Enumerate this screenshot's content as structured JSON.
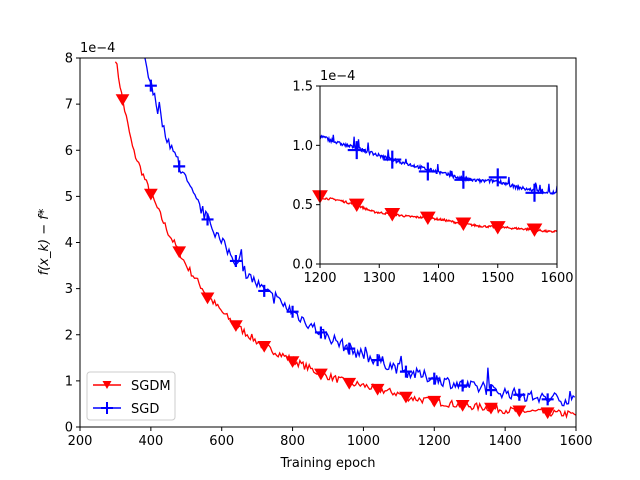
{
  "chart_data": [
    {
      "id": "main",
      "type": "line",
      "xlabel": "Training epoch",
      "ylabel": "f(x_k) − f*",
      "y_scale_label": "1e−4",
      "xlim": [
        200,
        1600
      ],
      "ylim": [
        0,
        8
      ],
      "x_ticks": [
        200,
        400,
        600,
        800,
        1000,
        1200,
        1400,
        1600
      ],
      "y_ticks": [
        0,
        1,
        2,
        3,
        4,
        5,
        6,
        7,
        8
      ],
      "legend_position": "lower-left",
      "series": [
        {
          "name": "SGDM",
          "color": "#ff0000",
          "marker": "triangle-down",
          "x": [
            300,
            320,
            350,
            400,
            450,
            480,
            500,
            560,
            600,
            640,
            700,
            720,
            800,
            880,
            960,
            1000,
            1040,
            1100,
            1120,
            1200,
            1280,
            1360,
            1400,
            1440,
            1520,
            1600
          ],
          "y": [
            8.0,
            7.1,
            6.0,
            5.05,
            4.2,
            3.8,
            3.5,
            2.85,
            2.5,
            2.2,
            1.85,
            1.75,
            1.45,
            1.15,
            0.95,
            0.9,
            0.82,
            0.72,
            0.65,
            0.55,
            0.47,
            0.41,
            0.37,
            0.35,
            0.31,
            0.27
          ],
          "marker_x": [
            320,
            400,
            480,
            560,
            640,
            720,
            800,
            880,
            960,
            1040,
            1120,
            1200,
            1280,
            1360,
            1440,
            1520
          ],
          "marker_y": [
            7.1,
            5.05,
            3.8,
            2.8,
            2.2,
            1.75,
            1.42,
            1.15,
            0.95,
            0.82,
            0.65,
            0.56,
            0.47,
            0.41,
            0.35,
            0.31
          ]
        },
        {
          "name": "SGD",
          "color": "#0000ff",
          "marker": "plus",
          "x": [
            380,
            400,
            440,
            480,
            520,
            560,
            600,
            640,
            680,
            720,
            800,
            880,
            960,
            1000,
            1040,
            1120,
            1200,
            1280,
            1360,
            1400,
            1440,
            1520,
            1600
          ],
          "y": [
            8.0,
            7.4,
            6.4,
            5.65,
            5.0,
            4.5,
            4.0,
            3.6,
            3.25,
            2.95,
            2.5,
            2.05,
            1.7,
            1.55,
            1.45,
            1.2,
            1.05,
            0.9,
            0.8,
            0.75,
            0.7,
            0.6,
            0.58
          ],
          "marker_x": [
            400,
            480,
            560,
            640,
            720,
            800,
            880,
            960,
            1040,
            1120,
            1200,
            1280,
            1360,
            1440,
            1520
          ],
          "marker_y": [
            7.4,
            5.65,
            4.5,
            3.6,
            2.95,
            2.5,
            2.05,
            1.7,
            1.45,
            1.2,
            1.05,
            0.9,
            0.8,
            0.7,
            0.6
          ]
        }
      ]
    },
    {
      "id": "inset",
      "type": "line",
      "y_scale_label": "1e−4",
      "xlim": [
        1200,
        1600
      ],
      "ylim": [
        0,
        1.5
      ],
      "x_ticks": [
        1200,
        1300,
        1400,
        1500,
        1600
      ],
      "y_ticks": [
        0.0,
        0.5,
        1.0,
        1.5
      ],
      "y_tick_labels": [
        "0.0",
        "0.5",
        "1.0",
        "1.5"
      ],
      "series": [
        {
          "name": "SGDM",
          "color": "#ff0000",
          "marker": "triangle-down",
          "x": [
            1200,
            1230,
            1260,
            1290,
            1320,
            1350,
            1380,
            1410,
            1440,
            1470,
            1500,
            1530,
            1560,
            1590,
            1600
          ],
          "y": [
            0.56,
            0.54,
            0.5,
            0.44,
            0.42,
            0.4,
            0.39,
            0.37,
            0.34,
            0.32,
            0.31,
            0.3,
            0.29,
            0.27,
            0.28
          ],
          "marker_x": [
            1200,
            1262,
            1322,
            1382,
            1442,
            1500,
            1562
          ],
          "marker_y": [
            0.57,
            0.5,
            0.42,
            0.39,
            0.34,
            0.31,
            0.29
          ]
        },
        {
          "name": "SGD",
          "color": "#0000ff",
          "marker": "plus",
          "x": [
            1200,
            1230,
            1260,
            1290,
            1320,
            1350,
            1380,
            1410,
            1440,
            1470,
            1500,
            1530,
            1560,
            1590,
            1600
          ],
          "y": [
            1.08,
            1.02,
            0.98,
            0.93,
            0.88,
            0.84,
            0.8,
            0.76,
            0.72,
            0.7,
            0.7,
            0.65,
            0.62,
            0.6,
            0.6
          ],
          "marker_x": [
            1262,
            1322,
            1382,
            1442,
            1500,
            1562
          ],
          "marker_y": [
            0.96,
            0.88,
            0.78,
            0.71,
            0.73,
            0.6
          ]
        }
      ]
    }
  ]
}
